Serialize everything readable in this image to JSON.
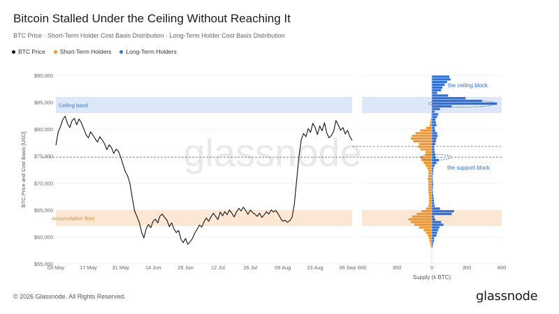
{
  "header": {
    "title": "Bitcoin Stalled Under the Ceiling Without Reaching It",
    "subtitle": "BTC Price · Short-Term Holder Cost Basis Distribution · Long-Term Holder Cost Basis Distribution"
  },
  "legend": [
    {
      "label": "BTC Price",
      "color": "#111111"
    },
    {
      "label": "Short-Term Holders",
      "color": "#f0962e"
    },
    {
      "label": "Long-Term Holders",
      "color": "#2f6fd6"
    }
  ],
  "footer": {
    "copyright": "© 2026 Glassnode. All Rights Reserved.",
    "brand": "glassnode"
  },
  "watermark": "glassnode",
  "colors": {
    "price": "#111111",
    "sth": "#f0962e",
    "lth": "#2f6fd6",
    "ceiling_band": "#dce8fa",
    "floor_band": "#fbe7d3"
  },
  "chart_data": {
    "type": "line",
    "ylabel": "BTC Price and Cost Basis [USD]",
    "ylim": [
      55000,
      90000
    ],
    "yticks": [
      {
        "value": 55000,
        "label": "$55,000"
      },
      {
        "value": 60000,
        "label": "$60,000"
      },
      {
        "value": 65000,
        "label": "$65,000"
      },
      {
        "value": 70000,
        "label": "$70,000"
      },
      {
        "value": 75000,
        "label": "$75,000"
      },
      {
        "value": 80000,
        "label": "$80,000"
      },
      {
        "value": 85000,
        "label": "$85,000"
      },
      {
        "value": 90000,
        "label": "$90,000"
      }
    ],
    "xlim": [
      0,
      128
    ],
    "xticks": [
      {
        "value": 0,
        "label": "03 May"
      },
      {
        "value": 14,
        "label": "17 May"
      },
      {
        "value": 28,
        "label": "31 May"
      },
      {
        "value": 42,
        "label": "14 Jun"
      },
      {
        "value": 56,
        "label": "28 Jun"
      },
      {
        "value": 70,
        "label": "12 Jul"
      },
      {
        "value": 84,
        "label": "26 Jul"
      },
      {
        "value": 98,
        "label": "09 Aug"
      },
      {
        "value": 112,
        "label": "23 Aug"
      },
      {
        "value": 126,
        "label": "06 Sep"
      }
    ],
    "ceiling_band": {
      "label": "Ceiling band",
      "range": [
        83000,
        86000
      ]
    },
    "floor_band": {
      "label": "Accumulation floor",
      "range": [
        62000,
        65000
      ]
    },
    "reference_lines": [
      {
        "value": 76800,
        "color": "#555555",
        "style": "dashed"
      },
      {
        "value": 74800,
        "color": "#2f6fd6",
        "style": "dashed"
      }
    ],
    "price_series": {
      "name": "BTC Price",
      "x": [
        0,
        1,
        2,
        3,
        4,
        5,
        6,
        7,
        8,
        9,
        10,
        11,
        12,
        13,
        14,
        15,
        16,
        17,
        18,
        19,
        20,
        21,
        22,
        23,
        24,
        25,
        26,
        27,
        28,
        29,
        30,
        31,
        32,
        33,
        34,
        35,
        36,
        37,
        38,
        39,
        40,
        41,
        42,
        43,
        44,
        45,
        46,
        47,
        48,
        49,
        50,
        51,
        52,
        53,
        54,
        55,
        56,
        57,
        58,
        59,
        60,
        61,
        62,
        63,
        64,
        65,
        66,
        67,
        68,
        69,
        70,
        71,
        72,
        73,
        74,
        75,
        76,
        77,
        78,
        79,
        80,
        81,
        82,
        83,
        84,
        85,
        86,
        87,
        88,
        89,
        90,
        91,
        92,
        93,
        94,
        95,
        96,
        97,
        98,
        99,
        100,
        101,
        102,
        103,
        104,
        105,
        106,
        107,
        108,
        109,
        110,
        111,
        112,
        113,
        114,
        115,
        116,
        117,
        118,
        119,
        120,
        121,
        122,
        123,
        124,
        125,
        126,
        127,
        128
      ],
      "y": [
        77000,
        79500,
        80500,
        81800,
        82400,
        81000,
        80300,
        81600,
        82000,
        80800,
        81900,
        81200,
        80100,
        79000,
        78400,
        79500,
        78900,
        78200,
        77600,
        78600,
        78000,
        77300,
        76200,
        77100,
        76600,
        75500,
        76300,
        75900,
        74800,
        73400,
        72100,
        71300,
        69900,
        67200,
        64800,
        63800,
        62700,
        60900,
        59800,
        61500,
        62300,
        61700,
        62900,
        63300,
        62600,
        63900,
        64200,
        63600,
        63100,
        61900,
        62600,
        61500,
        60800,
        61200,
        59600,
        58900,
        59700,
        58600,
        59100,
        59700,
        60700,
        61400,
        62200,
        61800,
        62800,
        63500,
        62900,
        63700,
        64400,
        63800,
        63200,
        64600,
        63900,
        64700,
        64100,
        65000,
        64400,
        63700,
        64600,
        65300,
        64800,
        65500,
        64900,
        64200,
        65000,
        64500,
        64200,
        63800,
        64400,
        63600,
        64100,
        64700,
        64200,
        65000,
        64600,
        64900,
        64300,
        63500,
        62900,
        63100,
        62700,
        63000,
        63600,
        66000,
        70500,
        74800,
        78000,
        79200,
        78600,
        80100,
        79400,
        81100,
        80300,
        79000,
        80600,
        79700,
        81200,
        79300,
        78400,
        78800,
        79600,
        81600,
        80800,
        79800,
        80300,
        79100,
        79800,
        78600,
        77900
      ]
    },
    "supply_axis": {
      "label": "Supply (k BTC)",
      "xlim": [
        -600,
        600
      ],
      "ticks": [
        {
          "value": -600,
          "label": "600"
        },
        {
          "value": -300,
          "label": "300"
        },
        {
          "value": 0,
          "label": "0"
        },
        {
          "value": 300,
          "label": "300"
        },
        {
          "value": 600,
          "label": "600"
        }
      ]
    },
    "distribution": {
      "bin_size": 500,
      "levels": [
        58250,
        58750,
        59250,
        59750,
        60250,
        60750,
        61250,
        61750,
        62250,
        62750,
        63250,
        63750,
        64250,
        64750,
        65250,
        65750,
        66250,
        66750,
        67250,
        67750,
        68250,
        68750,
        69250,
        69750,
        70250,
        70750,
        71250,
        71750,
        72250,
        72750,
        73250,
        73750,
        74250,
        74750,
        75250,
        75750,
        76250,
        76750,
        77250,
        77750,
        78250,
        78750,
        79250,
        79750,
        80250,
        80750,
        81250,
        81750,
        82250,
        82750,
        83250,
        83750,
        84250,
        84750,
        85250,
        85750,
        86250,
        86750,
        87250,
        87750,
        88250,
        88750,
        89250,
        89750
      ],
      "sth": [
        10,
        15,
        20,
        25,
        35,
        50,
        70,
        110,
        150,
        180,
        200,
        170,
        130,
        90,
        50,
        30,
        25,
        25,
        25,
        25,
        30,
        30,
        30,
        30,
        30,
        35,
        30,
        30,
        30,
        40,
        55,
        70,
        90,
        100,
        60,
        55,
        100,
        120,
        110,
        160,
        180,
        170,
        140,
        100,
        50,
        20,
        15,
        10,
        5,
        5,
        0,
        0,
        0,
        0,
        0,
        0,
        0,
        0,
        0,
        0,
        0,
        0,
        0,
        0
      ],
      "lth": [
        8,
        12,
        18,
        20,
        40,
        45,
        55,
        65,
        100,
        80,
        30,
        20,
        170,
        190,
        70,
        25,
        20,
        18,
        15,
        12,
        10,
        8,
        10,
        12,
        10,
        8,
        8,
        10,
        12,
        15,
        25,
        40,
        60,
        35,
        30,
        25,
        22,
        20,
        30,
        35,
        40,
        50,
        45,
        30,
        25,
        40,
        35,
        30,
        45,
        55,
        25,
        70,
        170,
        560,
        430,
        290,
        140,
        45,
        80,
        90,
        110,
        130,
        160,
        150
      ]
    },
    "annotations": [
      {
        "text": "the ceiling block",
        "color": "#2f6fd6"
      },
      {
        "text": "the support block",
        "color": "#2f6fd6"
      }
    ]
  }
}
